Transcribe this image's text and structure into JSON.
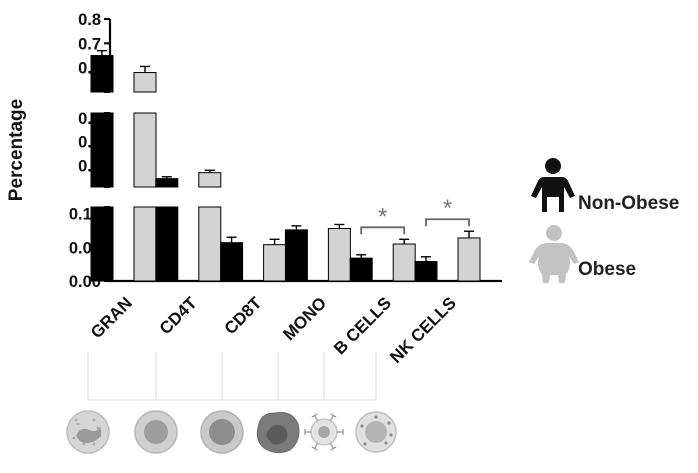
{
  "chart_data": {
    "type": "bar",
    "ylabel": "Percentage",
    "categories": [
      "GRAN",
      "CD4T",
      "CD8T",
      "MONO",
      "B CELLS",
      "NK CELLS"
    ],
    "series": [
      {
        "name": "Non-Obese",
        "color": "#000000",
        "values": [
          0.65,
          0.145,
          0.057,
          0.076,
          0.034,
          0.029
        ],
        "errors": [
          0.02,
          0.008,
          0.008,
          0.006,
          0.005,
          0.007
        ]
      },
      {
        "name": "Obese",
        "color": "#d3d3d3",
        "values": [
          0.58,
          0.17,
          0.054,
          0.078,
          0.055,
          0.064
        ],
        "errors": [
          0.025,
          0.01,
          0.008,
          0.006,
          0.007,
          0.01
        ]
      }
    ],
    "y_segments": [
      {
        "range": [
          0.5,
          0.8
        ],
        "ticks": [
          "0.8",
          "0.7",
          "0.6"
        ],
        "tick_values": [
          0.8,
          0.7,
          0.6
        ]
      },
      {
        "range": [
          0.11,
          0.42
        ],
        "ticks": [
          "0.4",
          "0.3",
          "0.2"
        ],
        "tick_values": [
          0.4,
          0.3,
          0.2
        ]
      },
      {
        "range": [
          0,
          0.11
        ],
        "ticks": [
          "0.10",
          "0.05",
          "0.00"
        ],
        "tick_values": [
          0.1,
          0.05,
          0.0
        ]
      }
    ],
    "annotations": [
      {
        "text": "*",
        "category": "B CELLS",
        "label": "significant difference"
      },
      {
        "text": "*",
        "category": "NK CELLS",
        "label": "significant difference"
      }
    ],
    "legend": {
      "placement": "right",
      "icons": [
        "person-silhouette-icon",
        "obese-person-silhouette-icon"
      ]
    },
    "cell_icons": [
      "granulocyte-cell-icon",
      "cd4t-cell-icon",
      "cd8t-cell-icon",
      "monocyte-cell-icon",
      "b-cell-icon",
      "nk-cell-icon"
    ]
  }
}
